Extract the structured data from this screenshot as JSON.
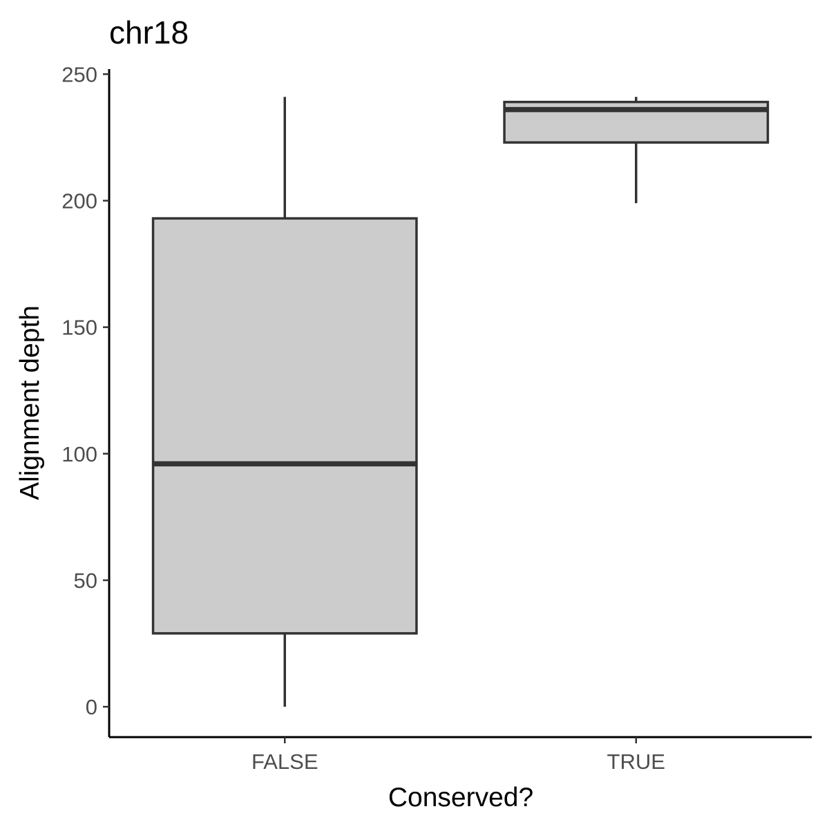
{
  "chart_data": {
    "type": "box",
    "title": "chr18",
    "xlabel": "Conserved?",
    "ylabel": "Alignment depth",
    "ylim": [
      -12,
      252
    ],
    "yticks": [
      0,
      50,
      100,
      150,
      200,
      250
    ],
    "grid": false,
    "legend": "none",
    "categories": [
      "FALSE",
      "TRUE"
    ],
    "boxes": [
      {
        "category": "FALSE",
        "min": 0,
        "q1": 29,
        "median": 96,
        "q3": 193,
        "max": 241
      },
      {
        "category": "TRUE",
        "min": 199,
        "q1": 223,
        "median": 236,
        "q3": 239,
        "max": 241
      }
    ],
    "colors": {
      "box_fill": "#cccccc",
      "box_stroke": "#333333",
      "axis": "#000000",
      "tick_label": "#4d4d4d"
    }
  }
}
